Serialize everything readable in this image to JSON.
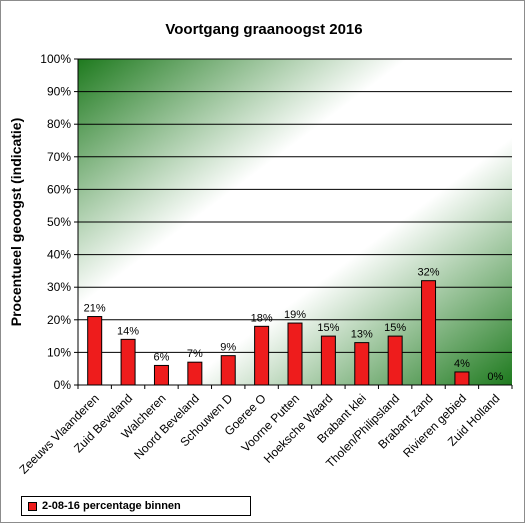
{
  "chart_data": {
    "type": "bar",
    "title": "Voortgang graanoogst 2016",
    "ylabel": "Procentueel geoogst (indicatie)",
    "xlabel": "",
    "ylim": [
      0,
      100
    ],
    "yticks": [
      "0%",
      "10%",
      "20%",
      "30%",
      "40%",
      "50%",
      "60%",
      "70%",
      "80%",
      "90%",
      "100%"
    ],
    "categories": [
      "Zeeuws Vlaanderen",
      "Zuid Beveland",
      "Walcheren",
      "Noord Beveland",
      "Schouwen D",
      "Goeree O",
      "Voorne Putten",
      "Hoeksche Waard",
      "Brabant klei",
      "Tholen/Philipsland",
      "Brabant zand",
      "Rivieren gebied",
      "Zuid Holland"
    ],
    "series": [
      {
        "name": "2-08-16 percentage binnen",
        "values": [
          21,
          14,
          6,
          7,
          9,
          18,
          19,
          15,
          13,
          15,
          32,
          4,
          0
        ],
        "labels": [
          "21%",
          "14%",
          "6%",
          "7%",
          "9%",
          "18%",
          "19%",
          "15%",
          "13%",
          "15%",
          "32%",
          "4%",
          "0%"
        ]
      }
    ],
    "grid": true,
    "legend_position": "bottom-left",
    "colors": {
      "bar": "#ee1c1c",
      "background_gradient": "#1e7a1e"
    }
  }
}
